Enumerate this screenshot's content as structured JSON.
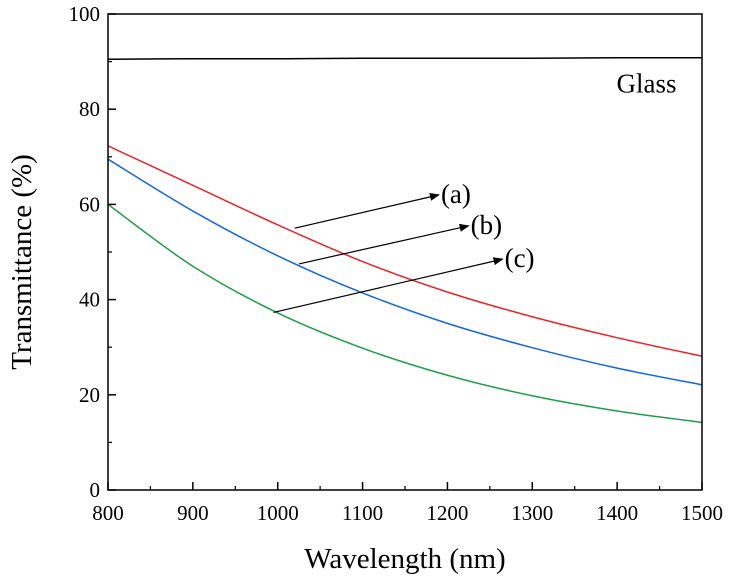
{
  "chart_data": {
    "type": "line",
    "xlabel": "Wavelength (nm)",
    "ylabel": "Transmittance (%)",
    "xlim": [
      800,
      1500
    ],
    "ylim": [
      0,
      100
    ],
    "x_ticks": [
      800,
      900,
      1000,
      1100,
      1200,
      1300,
      1400,
      1500
    ],
    "y_ticks": [
      0,
      20,
      40,
      60,
      80,
      100
    ],
    "grid": false,
    "legend": "none",
    "x": [
      800,
      900,
      1000,
      1100,
      1200,
      1300,
      1400,
      1500
    ],
    "series": [
      {
        "name": "Glass",
        "color": "#000000",
        "values": [
          90.5,
          90.6,
          90.6,
          90.7,
          90.7,
          90.7,
          90.8,
          90.8
        ]
      },
      {
        "name": "(a)",
        "color": "#e8252a",
        "values": [
          72.3,
          64.0,
          55.7,
          48.0,
          41.6,
          36.4,
          32.0,
          28.1
        ]
      },
      {
        "name": "(b)",
        "color": "#1565e0",
        "values": [
          69.5,
          58.6,
          49.2,
          41.4,
          35.0,
          29.9,
          25.6,
          22.1
        ]
      },
      {
        "name": "(c)",
        "color": "#1e9e4a",
        "values": [
          60.0,
          47.0,
          37.2,
          29.8,
          24.1,
          19.8,
          16.6,
          14.2
        ]
      }
    ],
    "annotations": [
      {
        "text": "(a)",
        "arrow_from": [
          1020,
          55
        ],
        "arrow_to": [
          1190,
          62
        ]
      },
      {
        "text": "(b)",
        "arrow_from": [
          1025,
          47.5
        ],
        "arrow_to": [
          1225,
          55.5
        ]
      },
      {
        "text": "(c)",
        "arrow_from": [
          995,
          37.3
        ],
        "arrow_to": [
          1265,
          48.5
        ]
      }
    ]
  }
}
